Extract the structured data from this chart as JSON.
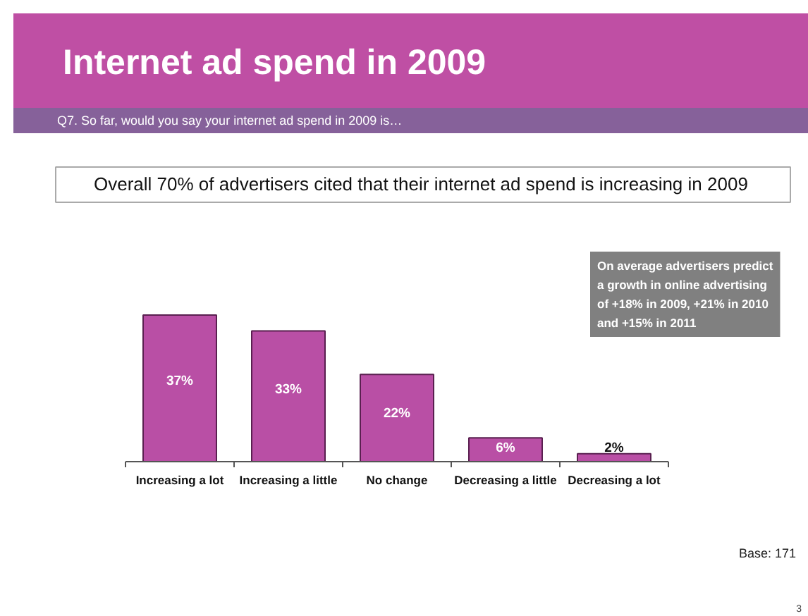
{
  "chart_data": {
    "type": "bar",
    "title": "Internet ad spend in 2009",
    "subtitle": "Q7. So far, would you say your internet ad spend in 2009 is…",
    "categories": [
      "Increasing a lot",
      "Increasing a little",
      "No change",
      "Decreasing a little",
      "Decreasing a lot"
    ],
    "values": [
      37,
      33,
      22,
      6,
      2
    ],
    "value_labels": [
      "37%",
      "33%",
      "22%",
      "6%",
      "2%"
    ],
    "color": "#b94fa5",
    "annotations": [
      "Overall 70% of advertisers cited that their internet ad spend is increasing in 2009",
      "On average advertisers predict a growth in online advertising of +18% in 2009, +21% in 2010 and +15% in 2011",
      "Base: 171",
      "3"
    ]
  }
}
